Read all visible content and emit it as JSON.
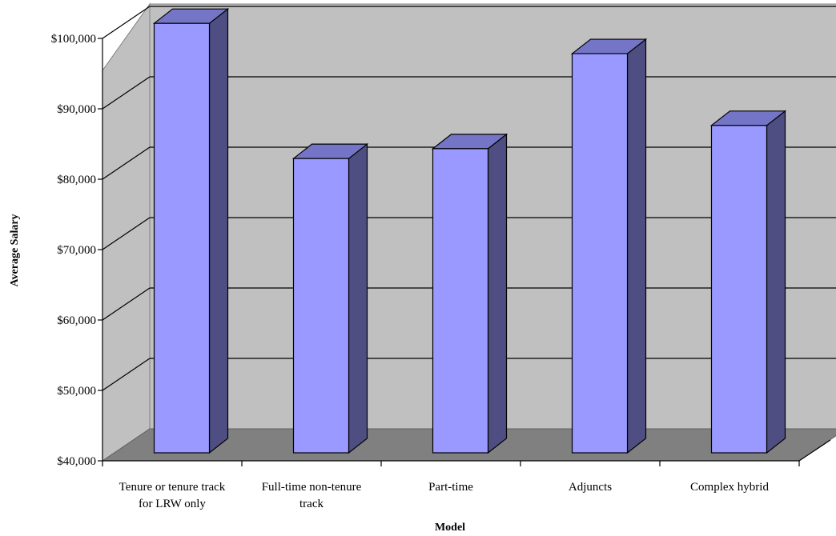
{
  "chart_data": {
    "type": "bar",
    "categories": [
      "Tenure or tenure track for LRW only",
      "Full-time non-tenure track",
      "Part-time",
      "Adjuncts",
      "Complex hybrid"
    ],
    "category_lines": [
      [
        "Tenure or tenure track",
        "for LRW only"
      ],
      [
        "Full-time non-tenure",
        "track"
      ],
      [
        "Part-time"
      ],
      [
        "Adjuncts"
      ],
      [
        "Complex hybrid"
      ]
    ],
    "values": [
      101000,
      81800,
      83200,
      96700,
      86500
    ],
    "title": "",
    "xlabel": "Model",
    "ylabel": "Average Salary",
    "ylim": [
      40000,
      100000
    ],
    "yticks": [
      {
        "value": 40000,
        "label": "$40,000"
      },
      {
        "value": 50000,
        "label": "$50,000"
      },
      {
        "value": 60000,
        "label": "$60,000"
      },
      {
        "value": 70000,
        "label": "$70,000"
      },
      {
        "value": 80000,
        "label": "$80,000"
      },
      {
        "value": 90000,
        "label": "$90,000"
      },
      {
        "value": 100000,
        "label": "$100,000"
      }
    ],
    "grid": true,
    "legend": "none",
    "colors": {
      "wall": "#c0c0c0",
      "floor": "#808080",
      "bar_front": "#9999ff",
      "bar_top": "#7575c8",
      "bar_side": "#4e4e82",
      "grid": "#000000"
    }
  }
}
